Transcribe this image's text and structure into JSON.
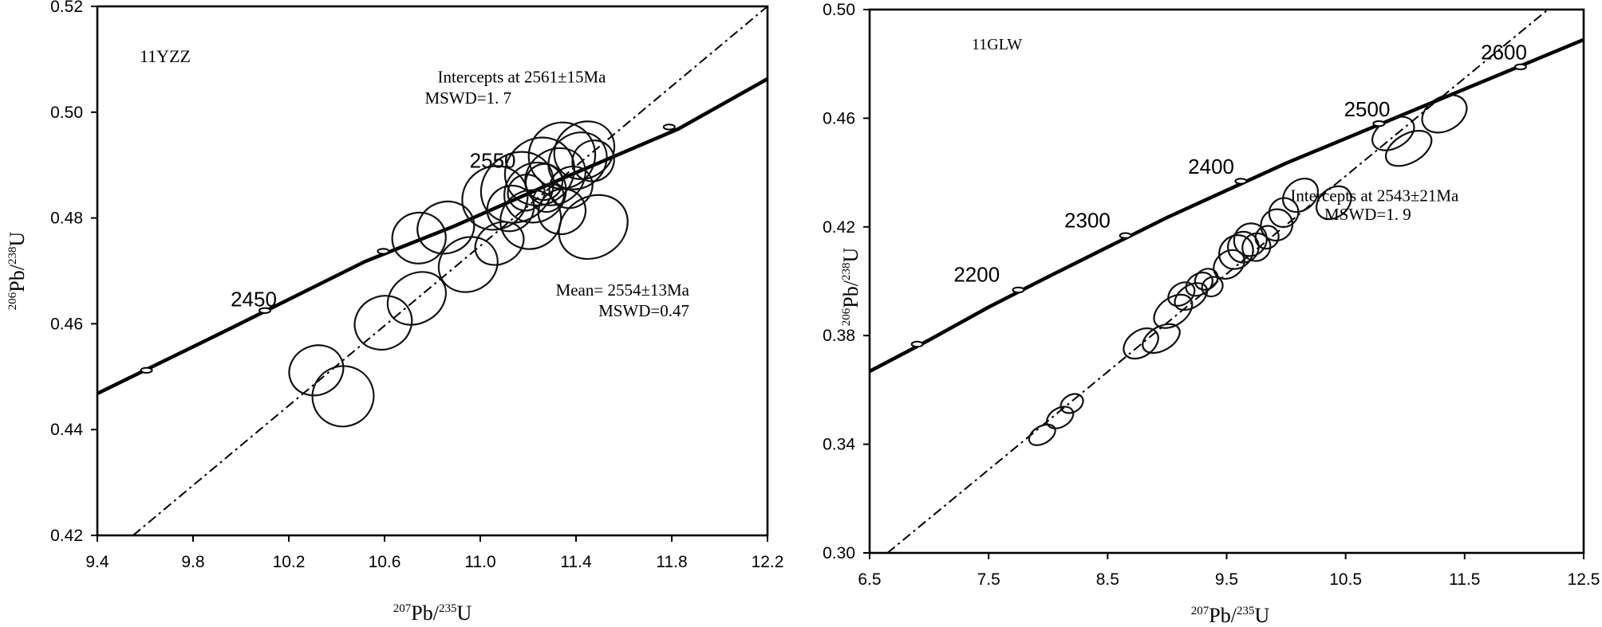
{
  "chart_data": [
    {
      "type": "scatter",
      "sample_label": "11YZZ",
      "xlabel": {
        "sup1": "207",
        "base1": "Pb/",
        "sup2": "235",
        "base2": "U"
      },
      "ylabel": {
        "sup1": "206",
        "base1": "Pb/",
        "sup2": "238",
        "base2": "U"
      },
      "xlim": [
        9.4,
        12.4
      ],
      "ylim": [
        0.42,
        0.52
      ],
      "xticks": [
        "9.4",
        "9.8",
        "10.2",
        "10.6",
        "11.0",
        "11.4",
        "11.8",
        "12.2"
      ],
      "yticks": [
        "0.42",
        "0.44",
        "0.46",
        "0.48",
        "0.50",
        "0.52"
      ],
      "annotations": [
        {
          "text": "Intercepts at 2561±15Ma",
          "x": 11.3,
          "y": 0.5056
        },
        {
          "text": "MSWD=1. 7",
          "x": 11.06,
          "y": 0.5016
        },
        {
          "text": "Mean= 2554±13Ma",
          "x": 12.05,
          "y": 0.4653
        },
        {
          "text": "MSWD=0.47",
          "x": 12.05,
          "y": 0.4614
        }
      ],
      "concordia": {
        "points": [
          [
            9.4,
            0.4468
          ],
          [
            10.0,
            0.4592
          ],
          [
            10.6,
            0.4718
          ],
          [
            11.0,
            0.4785
          ],
          [
            11.5,
            0.4878
          ],
          [
            12.0,
            0.4968
          ],
          [
            12.4,
            0.5063
          ]
        ],
        "age_labels": [
          {
            "text": "2450",
            "x": 10.1,
            "y": 0.4633
          },
          {
            "text": "2550",
            "x": 11.17,
            "y": 0.4895
          }
        ],
        "age_markers": [
          [
            9.62,
            0.4512
          ],
          [
            10.15,
            0.4625
          ],
          [
            10.68,
            0.4737
          ],
          [
            11.96,
            0.4972
          ]
        ]
      },
      "discordia": {
        "x1": 9.56,
        "y1": 0.42,
        "x2": 12.4,
        "y2": 0.52
      },
      "ellipses": [
        [
          10.38,
          0.4512,
          0.11,
          0.0052,
          -25
        ],
        [
          10.5,
          0.4463,
          0.135,
          0.0058,
          -22
        ],
        [
          10.68,
          0.4602,
          0.13,
          0.005,
          -26
        ],
        [
          10.83,
          0.4648,
          0.11,
          0.0058,
          -32
        ],
        [
          10.84,
          0.4762,
          0.12,
          0.0048,
          -10
        ],
        [
          10.96,
          0.4782,
          0.115,
          0.0054,
          -20
        ],
        [
          11.06,
          0.4712,
          0.12,
          0.0057,
          -28
        ],
        [
          11.2,
          0.4752,
          0.09,
          0.0048,
          -30
        ],
        [
          11.34,
          0.4797,
          0.13,
          0.0058,
          -30
        ],
        [
          11.48,
          0.4812,
          0.1,
          0.0045,
          -25
        ],
        [
          11.62,
          0.4783,
          0.135,
          0.0068,
          -33
        ],
        [
          11.18,
          0.4838,
          0.14,
          0.0063,
          -34
        ],
        [
          11.28,
          0.4858,
          0.15,
          0.0072,
          -40
        ],
        [
          11.36,
          0.4848,
          0.13,
          0.006,
          -36
        ],
        [
          11.38,
          0.4888,
          0.16,
          0.0062,
          -38
        ],
        [
          11.45,
          0.4878,
          0.12,
          0.006,
          -36
        ],
        [
          11.48,
          0.4918,
          0.15,
          0.0062,
          -40
        ],
        [
          11.55,
          0.4908,
          0.12,
          0.0058,
          -40
        ],
        [
          11.58,
          0.4928,
          0.14,
          0.0052,
          -36
        ],
        [
          11.32,
          0.4848,
          0.08,
          0.0035,
          -30
        ],
        [
          11.4,
          0.4868,
          0.08,
          0.0035,
          -30
        ],
        [
          11.25,
          0.4818,
          0.1,
          0.0045,
          -35
        ],
        [
          11.52,
          0.4858,
          0.09,
          0.0042,
          -35
        ],
        [
          11.42,
          0.4838,
          0.06,
          0.003,
          -30
        ],
        [
          11.62,
          0.4908,
          0.09,
          0.004,
          -35
        ]
      ]
    },
    {
      "type": "scatter",
      "sample_label": "11GLW",
      "xlabel": {
        "sup1": "207",
        "base1": "Pb/",
        "sup2": "235",
        "base2": "U"
      },
      "ylabel": {
        "sup1": "206",
        "base1": "Pb/",
        "sup2": "238",
        "base2": "U"
      },
      "xlim": [
        6.5,
        12.5
      ],
      "ylim": [
        0.3,
        0.52
      ],
      "xticks": [
        "6.5",
        "7.5",
        "8.5",
        "9.5",
        "10.5",
        "11.5",
        "12.5"
      ],
      "yticks": [
        "0.30",
        "0.34",
        "0.38",
        "0.42",
        "0.46",
        "0.50"
      ],
      "annotations": [
        {
          "text": "Intercepts at 2543±21Ma",
          "x": 11.45,
          "y": 0.4425
        },
        {
          "text": "MSWD=1. 9",
          "x": 11.05,
          "y": 0.4348
        }
      ],
      "concordia": {
        "points": [
          [
            6.5,
            0.3735
          ],
          [
            7.0,
            0.3862
          ],
          [
            7.5,
            0.3995
          ],
          [
            8.0,
            0.4118
          ],
          [
            8.5,
            0.4238
          ],
          [
            9.0,
            0.4358
          ],
          [
            9.5,
            0.4468
          ],
          [
            10.0,
            0.4578
          ],
          [
            10.5,
            0.4678
          ],
          [
            11.0,
            0.4778
          ],
          [
            11.5,
            0.4878
          ],
          [
            12.0,
            0.4978
          ],
          [
            12.5,
            0.5078
          ]
        ],
        "age_labels": [
          {
            "text": "2200",
            "x": 7.4,
            "y": 0.4098
          },
          {
            "text": "2300",
            "x": 8.33,
            "y": 0.4318
          },
          {
            "text": "2400",
            "x": 9.37,
            "y": 0.4535
          },
          {
            "text": "2500",
            "x": 10.68,
            "y": 0.4768
          },
          {
            "text": "2600",
            "x": 11.83,
            "y": 0.4998
          }
        ],
        "age_markers": [
          [
            6.9,
            0.3845
          ],
          [
            7.75,
            0.4065
          ],
          [
            8.65,
            0.4285
          ],
          [
            9.62,
            0.4505
          ],
          [
            10.78,
            0.4738
          ],
          [
            11.97,
            0.4968
          ]
        ]
      },
      "discordia": {
        "x1": 6.65,
        "y1": 0.3,
        "x2": 12.2,
        "y2": 0.52
      },
      "ellipses": [
        [
          7.95,
          0.3478,
          0.12,
          0.0035,
          -30
        ],
        [
          8.1,
          0.3548,
          0.12,
          0.0038,
          -30
        ],
        [
          8.2,
          0.3605,
          0.1,
          0.0035,
          -30
        ],
        [
          8.78,
          0.3848,
          0.16,
          0.0052,
          -35
        ],
        [
          8.95,
          0.3868,
          0.17,
          0.0048,
          -30
        ],
        [
          9.05,
          0.3978,
          0.18,
          0.0055,
          -36
        ],
        [
          9.12,
          0.4048,
          0.12,
          0.0042,
          -35
        ],
        [
          9.2,
          0.4038,
          0.15,
          0.0045,
          -33
        ],
        [
          9.27,
          0.4088,
          0.12,
          0.0042,
          -33
        ],
        [
          9.33,
          0.4108,
          0.1,
          0.004,
          -33
        ],
        [
          9.38,
          0.4078,
          0.09,
          0.0038,
          -33
        ],
        [
          9.52,
          0.4168,
          0.14,
          0.0052,
          -38
        ],
        [
          9.58,
          0.4218,
          0.15,
          0.0065,
          -45
        ],
        [
          9.64,
          0.4238,
          0.13,
          0.0062,
          -45
        ],
        [
          9.7,
          0.4268,
          0.14,
          0.0065,
          -45
        ],
        [
          9.75,
          0.4238,
          0.12,
          0.0055,
          -40
        ],
        [
          9.84,
          0.4278,
          0.1,
          0.0045,
          -40
        ],
        [
          9.92,
          0.4328,
          0.13,
          0.0065,
          -42
        ],
        [
          9.98,
          0.4378,
          0.12,
          0.006,
          -42
        ],
        [
          10.12,
          0.4448,
          0.16,
          0.006,
          -40
        ],
        [
          10.4,
          0.4418,
          0.16,
          0.0058,
          -40
        ],
        [
          10.9,
          0.4698,
          0.19,
          0.0058,
          -30
        ],
        [
          11.03,
          0.4638,
          0.21,
          0.0058,
          -30
        ],
        [
          11.33,
          0.4778,
          0.2,
          0.0068,
          -30
        ]
      ]
    }
  ]
}
